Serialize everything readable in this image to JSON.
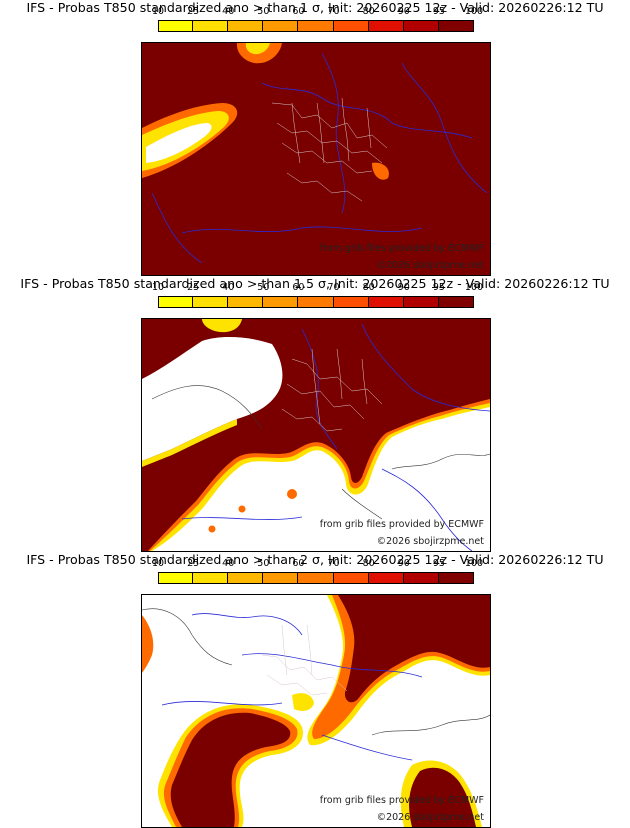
{
  "colorbar": {
    "labels": [
      "10",
      "25",
      "40",
      "50",
      "60",
      "70",
      "80",
      "90",
      "95",
      "100"
    ],
    "colors": [
      "#ffff00",
      "#ffe000",
      "#ffb800",
      "#ff9900",
      "#ff7a00",
      "#ff5000",
      "#e01000",
      "#b00000",
      "#800000"
    ]
  },
  "map_colors": {
    "prob_high": "#7a0000",
    "prob_mid": "#ff6a00",
    "prob_low": "#ffe300",
    "borders": "#2a2ad8",
    "admin": "#d8c8c8"
  },
  "panels": [
    {
      "title": "IFS - Probas T850  standardized ano > than 1 σ, Init: 20260225 12z - Valid: 20260226:12 TU",
      "credit_source": "from grib files provided by ECMWF",
      "credit_copyright": "©2026 sbojirzpme.net"
    },
    {
      "title": "IFS - Probas T850  standardized ano > than 1.5 σ, Init: 20260225 12z - Valid: 20260226:12 TU",
      "credit_source": "from grib files provided by ECMWF",
      "credit_copyright": "©2026 sbojirzpme.net"
    },
    {
      "title": "IFS - Probas T850  standardized ano > than 2 σ, Init: 20260225 12z - Valid: 20260226:12 TU",
      "credit_source": "from grib files provided by ECMWF",
      "credit_copyright": "©2026 sbojirzpme.net"
    }
  ]
}
